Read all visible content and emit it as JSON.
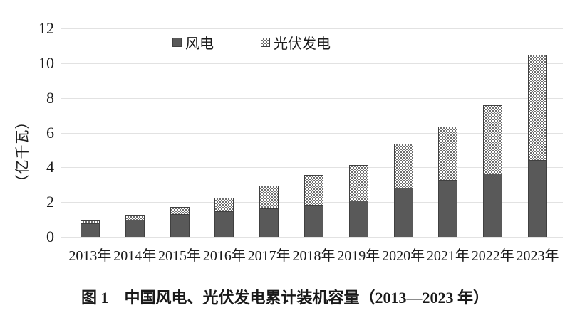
{
  "figure": {
    "caption": "图 1　中国风电、光伏发电累计装机容量（2013—2023 年）"
  },
  "chart_data": {
    "type": "bar",
    "stacked": true,
    "title": "",
    "xlabel": "",
    "ylabel": "（亿千瓦）",
    "ylim": [
      0,
      12
    ],
    "yticks": [
      0,
      2,
      4,
      6,
      8,
      10,
      12
    ],
    "grid": true,
    "gridline_color": "#e2e2e2",
    "legend_position": "top-inside",
    "categories": [
      "2013年",
      "2014年",
      "2015年",
      "2016年",
      "2017年",
      "2018年",
      "2019年",
      "2020年",
      "2021年",
      "2022年",
      "2023年"
    ],
    "series": [
      {
        "name": "风电",
        "pattern": "solid",
        "color": "#595959",
        "values": [
          0.77,
          0.97,
          1.31,
          1.49,
          1.64,
          1.84,
          2.1,
          2.82,
          3.28,
          3.65,
          4.41
        ]
      },
      {
        "name": "光伏发电",
        "pattern": "checker",
        "color": "#6f6f6f",
        "values": [
          0.19,
          0.28,
          0.43,
          0.77,
          1.3,
          1.74,
          2.05,
          2.53,
          3.07,
          3.93,
          6.09
        ]
      }
    ]
  }
}
